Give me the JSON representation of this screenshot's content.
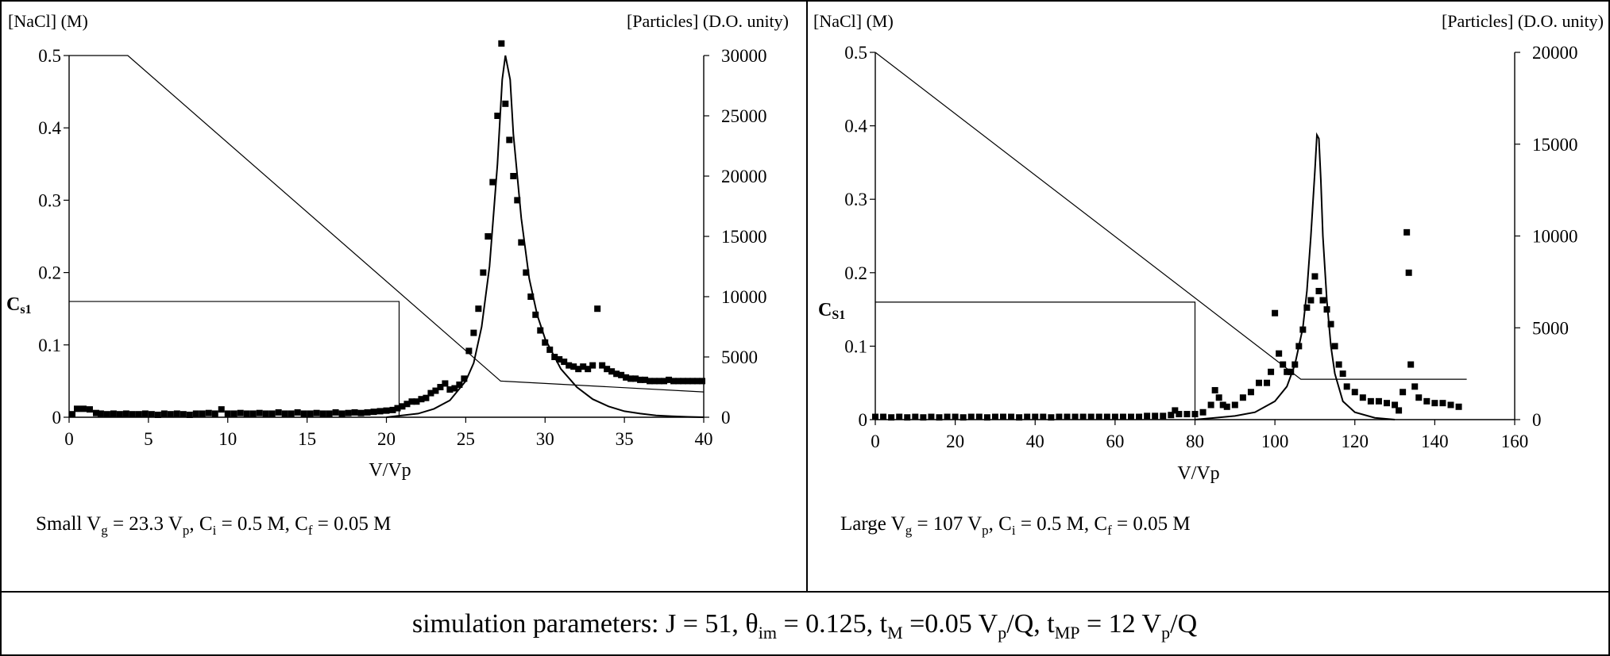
{
  "chart_data": [
    {
      "type": "line",
      "left_axis_label": "[NaCl]  (M)",
      "right_axis_label": "[Particles] (D.O. unity)",
      "xlabel": "V/Vp",
      "xlim": [
        0,
        40
      ],
      "x_ticks": [
        "0",
        "5",
        "10",
        "15",
        "20",
        "25",
        "30",
        "35",
        "40"
      ],
      "ylim_left": [
        0,
        0.5
      ],
      "y_ticks_left": [
        "0",
        "0.1",
        "0.2",
        "0.3",
        "0.4",
        "0.5"
      ],
      "ylim_right": [
        0,
        30000
      ],
      "y_ticks_right": [
        "0",
        "5000",
        "10000",
        "15000",
        "20000",
        "25000",
        "30000"
      ],
      "cs1_label": "C",
      "cs1_sub": "s1",
      "cs1_value": 0.16,
      "cs1_x": 20.8,
      "caption": {
        "p1": "Small V",
        "s1": "g",
        "p2": " = 23.3 V",
        "s2": "p",
        "p3": ", C",
        "s3": "i",
        "p4": " = 0.5 M, C",
        "s4": "f",
        "p5": " = 0.05 M"
      },
      "series": [
        {
          "role": "gradient",
          "axis": "left",
          "style": "thin-line",
          "x": [
            0,
            3.7,
            27.2,
            40
          ],
          "y": [
            0.5,
            0.5,
            0.05,
            0.035
          ]
        },
        {
          "role": "simulation",
          "axis": "right",
          "style": "line",
          "x": [
            20,
            22,
            23,
            24,
            25,
            25.5,
            26,
            26.5,
            27,
            27.3,
            27.5,
            27.8,
            28,
            28.5,
            29,
            29.5,
            30,
            31,
            32,
            33,
            34,
            35,
            36,
            37,
            38,
            39,
            40
          ],
          "y": [
            0,
            300,
            700,
            1400,
            3000,
            4500,
            7500,
            12500,
            21000,
            28000,
            30000,
            28000,
            23500,
            16500,
            11500,
            8500,
            6500,
            4000,
            2500,
            1500,
            900,
            500,
            300,
            150,
            80,
            30,
            0
          ]
        },
        {
          "role": "experimental",
          "axis": "right",
          "style": "markers",
          "x": [
            0.2,
            0.5,
            0.9,
            1.3,
            1.7,
            2,
            2.4,
            2.8,
            3.2,
            3.6,
            4,
            4.4,
            4.8,
            5.2,
            5.6,
            6,
            6.4,
            6.8,
            7.2,
            7.6,
            8,
            8.4,
            8.8,
            9.2,
            9.6,
            10,
            10.4,
            10.8,
            11.2,
            11.6,
            12,
            12.4,
            12.8,
            13.2,
            13.6,
            14,
            14.4,
            14.8,
            15.2,
            15.6,
            16,
            16.4,
            16.8,
            17.2,
            17.6,
            18,
            18.4,
            18.8,
            19.2,
            19.6,
            20,
            20.4,
            20.7,
            21,
            21.3,
            21.6,
            21.9,
            22.2,
            22.5,
            22.8,
            23.1,
            23.4,
            23.7,
            24,
            24.3,
            24.6,
            24.9,
            25.2,
            25.5,
            25.8,
            26.1,
            26.4,
            26.7,
            27,
            27.25,
            27.5,
            27.75,
            28,
            28.25,
            28.5,
            28.8,
            29.1,
            29.4,
            29.7,
            30,
            30.3,
            30.6,
            30.9,
            31.2,
            31.5,
            31.8,
            32.1,
            32.4,
            32.7,
            33,
            33.3,
            33.6,
            33.9,
            34.2,
            34.5,
            34.8,
            35.1,
            35.4,
            35.7,
            36,
            36.3,
            36.6,
            36.9,
            37.2,
            37.5,
            37.8,
            38.1,
            38.4,
            38.7,
            39,
            39.3,
            39.6,
            39.9
          ],
          "y": [
            250,
            700,
            700,
            650,
            350,
            300,
            250,
            300,
            250,
            300,
            250,
            250,
            300,
            250,
            200,
            300,
            250,
            300,
            250,
            200,
            300,
            300,
            350,
            300,
            650,
            300,
            300,
            350,
            300,
            300,
            350,
            300,
            300,
            400,
            300,
            300,
            400,
            300,
            300,
            350,
            300,
            300,
            400,
            300,
            350,
            400,
            350,
            400,
            450,
            500,
            550,
            600,
            750,
            900,
            1100,
            1300,
            1300,
            1500,
            1600,
            2000,
            2200,
            2500,
            2800,
            2300,
            2400,
            2700,
            3200,
            5500,
            7000,
            9000,
            12000,
            15000,
            19500,
            25000,
            31000,
            26000,
            23000,
            20000,
            18000,
            14500,
            12000,
            10000,
            8500,
            7200,
            6200,
            5600,
            5000,
            4800,
            4600,
            4300,
            4200,
            4000,
            4200,
            4000,
            4300,
            9000,
            4300,
            4000,
            3800,
            3600,
            3500,
            3300,
            3200,
            3200,
            3100,
            3100,
            3000,
            3000,
            3000,
            3000,
            3100,
            3000,
            3000,
            3000,
            3000,
            3000,
            3000,
            3000
          ]
        }
      ]
    },
    {
      "type": "line",
      "left_axis_label": "[NaCl] (M)",
      "right_axis_label": "[Particles] (D.O. unity)",
      "xlabel": "V/Vp",
      "xlim": [
        0,
        160
      ],
      "x_ticks": [
        "0",
        "20",
        "40",
        "60",
        "80",
        "100",
        "120",
        "140",
        "160"
      ],
      "ylim_left": [
        0,
        0.5
      ],
      "y_ticks_left": [
        "0",
        "0.1",
        "0.2",
        "0.3",
        "0.4",
        "0.5"
      ],
      "ylim_right": [
        0,
        20000
      ],
      "y_ticks_right": [
        "0",
        "5000",
        "10000",
        "15000",
        "20000"
      ],
      "cs1_label": "C",
      "cs1_sub": "S1",
      "cs1_value": 0.16,
      "cs1_x": 80,
      "caption": {
        "p1": "Large V",
        "s1": "g",
        "p2": " = 107 V",
        "s2": "p",
        "p3": ", C",
        "s3": "i",
        "p4": " = 0.5 M, C",
        "s4": "f",
        "p5": " = 0.05 M"
      },
      "series": [
        {
          "role": "gradient",
          "axis": "left",
          "style": "thin-line",
          "x": [
            0,
            106.5,
            148
          ],
          "y": [
            0.5,
            0.055,
            0.055
          ]
        },
        {
          "role": "simulation",
          "axis": "right",
          "style": "line",
          "x": [
            80,
            90,
            95,
            100,
            103,
            105,
            107,
            108,
            109,
            110,
            110.5,
            111,
            111.5,
            112,
            113,
            114,
            115,
            117,
            120,
            125,
            130
          ],
          "y": [
            0,
            200,
            400,
            1000,
            1800,
            3000,
            5000,
            7000,
            10000,
            13500,
            15500,
            15300,
            13000,
            10000,
            6500,
            4000,
            2500,
            1000,
            400,
            100,
            0
          ]
        },
        {
          "role": "experimental",
          "axis": "right",
          "style": "markers",
          "x": [
            0,
            2,
            4,
            6,
            8,
            10,
            12,
            14,
            16,
            18,
            20,
            22,
            24,
            26,
            28,
            30,
            32,
            34,
            36,
            38,
            40,
            42,
            44,
            46,
            48,
            50,
            52,
            54,
            56,
            58,
            60,
            62,
            64,
            66,
            68,
            70,
            72,
            74,
            75,
            76,
            78,
            80,
            82,
            84,
            85,
            86,
            87,
            88,
            90,
            92,
            94,
            96,
            98,
            99,
            100,
            101,
            102,
            103,
            104,
            105,
            106,
            107,
            108,
            109,
            110,
            111,
            112,
            113,
            114,
            115,
            116,
            117,
            118,
            120,
            122,
            124,
            126,
            128,
            130,
            131,
            132,
            133,
            133.5,
            134,
            135,
            136,
            138,
            140,
            142,
            144,
            146
          ],
          "y": [
            150,
            150,
            120,
            150,
            120,
            150,
            120,
            150,
            120,
            150,
            150,
            120,
            150,
            150,
            120,
            150,
            150,
            150,
            120,
            150,
            150,
            150,
            120,
            150,
            150,
            150,
            150,
            150,
            150,
            150,
            150,
            150,
            150,
            150,
            200,
            200,
            200,
            250,
            500,
            300,
            300,
            300,
            400,
            800,
            1600,
            1200,
            800,
            700,
            800,
            1200,
            1500,
            2000,
            2000,
            2600,
            5800,
            3600,
            3000,
            2600,
            2600,
            3000,
            4000,
            4900,
            6100,
            6500,
            7800,
            7000,
            6500,
            6000,
            5200,
            4000,
            3000,
            2500,
            1800,
            1500,
            1200,
            1000,
            1000,
            900,
            800,
            500,
            1500,
            10200,
            8000,
            3000,
            1800,
            1200,
            1000,
            900,
            900,
            800,
            700
          ]
        }
      ]
    }
  ],
  "footer": {
    "p1": "simulation parameters: J = 51, θ",
    "s1": "im",
    "p2": " = 0.125, t",
    "s2": "M",
    "p3": " =0.05 V",
    "s3": "p",
    "p4": "/Q, t",
    "s4": "MP",
    "p5": " = 12 V",
    "s5": "p",
    "p6": "/Q"
  }
}
